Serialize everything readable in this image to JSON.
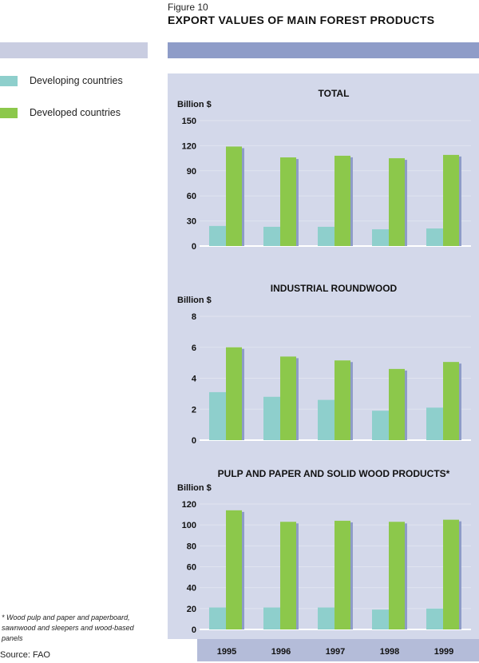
{
  "figure_label": "Figure 10",
  "figure_title": "EXPORT VALUES OF MAIN FOREST PRODUCTS",
  "legend": [
    {
      "label": "Developing countries",
      "color": "#8ecfcc"
    },
    {
      "label": "Developed countries",
      "color": "#8cc84b"
    }
  ],
  "footnote": "* Wood pulp and paper and paperboard, sawnwood and sleepers and wood-based panels",
  "source": "Source: FAO",
  "colors": {
    "panel": "#d3d8ea",
    "axis_band": "#b4bcd9",
    "header_band": "#8e9cc8",
    "shadow": "#8e9cc8"
  },
  "chart_data": [
    {
      "type": "bar",
      "title": "TOTAL",
      "ylabel": "Billion $",
      "categories": [
        "1995",
        "1996",
        "1997",
        "1998",
        "1999"
      ],
      "ylim": [
        0,
        150
      ],
      "yticks": [
        0,
        30,
        60,
        90,
        120,
        150
      ],
      "grid": true,
      "series": [
        {
          "name": "Developing countries",
          "values": [
            24,
            23,
            23,
            20,
            21
          ]
        },
        {
          "name": "Developed countries",
          "values": [
            119,
            106,
            108,
            105,
            109
          ]
        }
      ]
    },
    {
      "type": "bar",
      "title": "INDUSTRIAL ROUNDWOOD",
      "ylabel": "Billion $",
      "categories": [
        "1995",
        "1996",
        "1997",
        "1998",
        "1999"
      ],
      "ylim": [
        0,
        8
      ],
      "yticks": [
        0,
        2,
        4,
        6,
        8
      ],
      "grid": true,
      "series": [
        {
          "name": "Developing countries",
          "values": [
            3.1,
            2.8,
            2.6,
            1.9,
            2.1
          ]
        },
        {
          "name": "Developed countries",
          "values": [
            6.0,
            5.4,
            5.15,
            4.6,
            5.05
          ]
        }
      ]
    },
    {
      "type": "bar",
      "title": "PULP AND PAPER AND SOLID WOOD PRODUCTS*",
      "ylabel": "Billion $",
      "categories": [
        "1995",
        "1996",
        "1997",
        "1998",
        "1999"
      ],
      "ylim": [
        0,
        120
      ],
      "yticks": [
        0,
        20,
        40,
        60,
        80,
        100,
        120
      ],
      "grid": true,
      "series": [
        {
          "name": "Developing countries",
          "values": [
            21,
            21,
            21,
            19,
            20
          ]
        },
        {
          "name": "Developed countries",
          "values": [
            114,
            103,
            104,
            103,
            105
          ]
        }
      ]
    }
  ]
}
